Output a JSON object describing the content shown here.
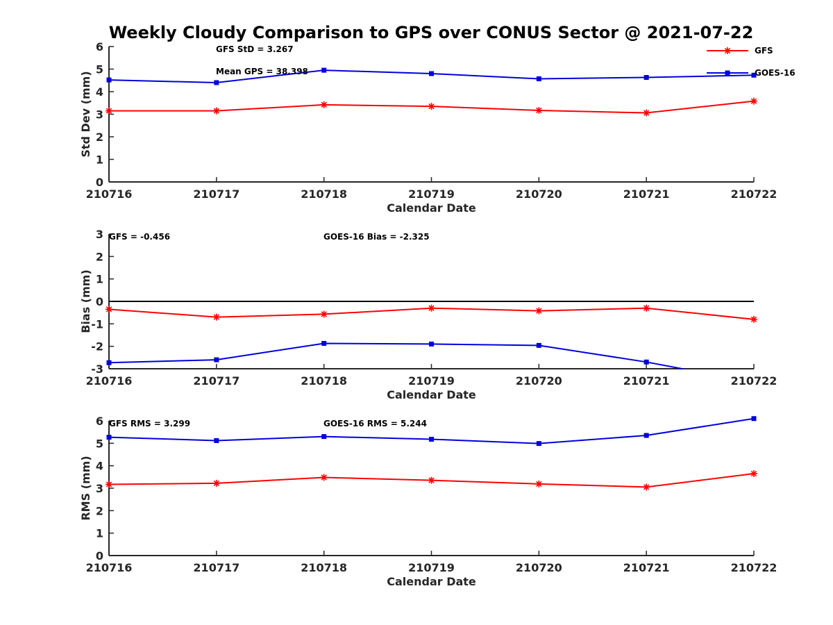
{
  "title": "Weekly Cloudy Comparison to GPS over CONUS Sector @ 2021-07-22",
  "colors": {
    "gfs": "#ff0000",
    "goes": "#0000dd",
    "axis": "#262626"
  },
  "legend": [
    {
      "name": "GFS",
      "marker": "asterisk",
      "color": "#ff0000"
    },
    {
      "name": "GOES-16",
      "marker": "square",
      "color": "#0000dd"
    }
  ],
  "chart_data": [
    {
      "type": "line",
      "xlabel": "Calendar Date",
      "ylabel": "Std Dev (mm)",
      "categories": [
        "210716",
        "210717",
        "210718",
        "210719",
        "210720",
        "210721",
        "210722"
      ],
      "ylim": [
        0,
        6
      ],
      "yticks": [
        0,
        1,
        2,
        3,
        4,
        5,
        6
      ],
      "zero_line": false,
      "annotations": [
        "GFS StD = 3.267",
        "Mean GPS = 38.398"
      ],
      "series": [
        {
          "name": "GFS",
          "values": [
            3.15,
            3.15,
            3.42,
            3.35,
            3.17,
            3.06,
            3.58
          ]
        },
        {
          "name": "GOES-16",
          "values": [
            4.52,
            4.4,
            4.95,
            4.8,
            4.57,
            4.63,
            4.73
          ]
        }
      ]
    },
    {
      "type": "line",
      "xlabel": "Calendar Date",
      "ylabel": "Bias (mm)",
      "categories": [
        "210716",
        "210717",
        "210718",
        "210719",
        "210720",
        "210721",
        "210722"
      ],
      "ylim": [
        -3,
        3
      ],
      "yticks": [
        -3,
        -2,
        -1,
        0,
        1,
        2,
        3
      ],
      "zero_line": true,
      "annotations": [
        "GFS = -0.456",
        "GOES-16 Bias  = -2.325"
      ],
      "series": [
        {
          "name": "GFS",
          "values": [
            -0.35,
            -0.7,
            -0.57,
            -0.3,
            -0.42,
            -0.3,
            -0.8
          ]
        },
        {
          "name": "GOES-16",
          "values": [
            -2.73,
            -2.6,
            -1.87,
            -1.9,
            -1.96,
            -2.7,
            -3.6
          ]
        }
      ]
    },
    {
      "type": "line",
      "xlabel": "Calendar Date",
      "ylabel": "RMS (mm)",
      "categories": [
        "210716",
        "210717",
        "210718",
        "210719",
        "210720",
        "210721",
        "210722"
      ],
      "ylim": [
        0,
        6
      ],
      "yticks": [
        0,
        1,
        2,
        3,
        4,
        5,
        6
      ],
      "zero_line": false,
      "annotations": [
        "GFS RMS = 3.299",
        "GOES-16 RMS = 5.244"
      ],
      "series": [
        {
          "name": "GFS",
          "values": [
            3.17,
            3.22,
            3.48,
            3.35,
            3.19,
            3.05,
            3.65
          ]
        },
        {
          "name": "GOES-16",
          "values": [
            5.27,
            5.12,
            5.3,
            5.18,
            4.99,
            5.35,
            6.1
          ]
        }
      ]
    }
  ]
}
